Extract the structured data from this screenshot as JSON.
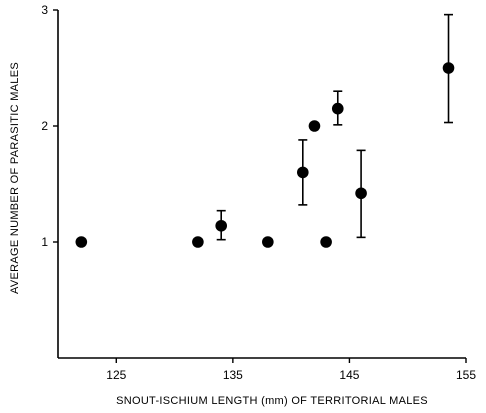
{
  "chart_data": {
    "type": "scatter",
    "title": "",
    "xlabel": "SNOUT-ISCHIUM LENGTH (mm) OF TERRITORIAL MALES",
    "ylabel": "AVERAGE NUMBER OF PARASITIC MALES",
    "xlim": [
      120,
      155
    ],
    "ylim": [
      0,
      3
    ],
    "xticks": [
      125,
      135,
      145,
      155
    ],
    "yticks": [
      1,
      2,
      3
    ],
    "grid": false,
    "legend": "none",
    "points": [
      {
        "x": 122,
        "y": 1.0
      },
      {
        "x": 132,
        "y": 1.0
      },
      {
        "x": 134,
        "y": 1.14,
        "err_low": 1.02,
        "err_high": 1.27
      },
      {
        "x": 138,
        "y": 1.0
      },
      {
        "x": 141,
        "y": 1.6,
        "err_low": 1.32,
        "err_high": 1.88
      },
      {
        "x": 142,
        "y": 2.0
      },
      {
        "x": 143,
        "y": 1.0
      },
      {
        "x": 144,
        "y": 2.15,
        "err_low": 2.01,
        "err_high": 2.3
      },
      {
        "x": 146,
        "y": 1.42,
        "err_low": 1.04,
        "err_high": 1.79
      },
      {
        "x": 153.5,
        "y": 2.5,
        "err_low": 2.03,
        "err_high": 2.96
      }
    ]
  }
}
